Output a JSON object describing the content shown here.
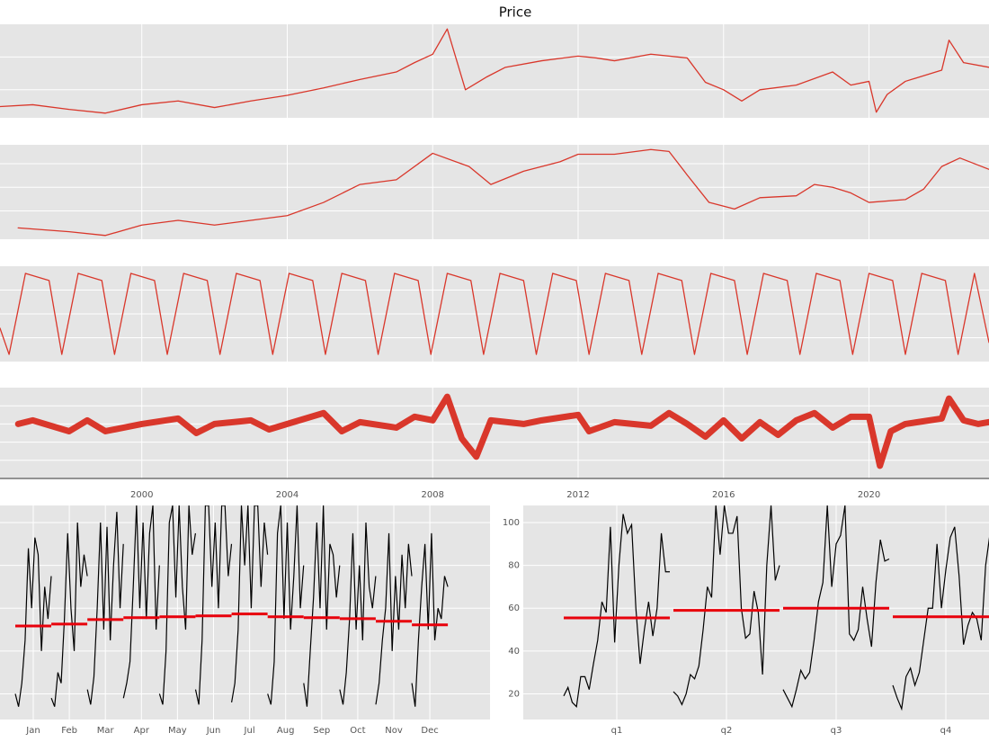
{
  "chart_data": [
    {
      "type": "line",
      "title": "Price",
      "color": "#d9372b",
      "linewidth": 1.3,
      "grid": true,
      "xlim": [
        1996.1,
        2023.3
      ],
      "xticks": [
        2000,
        2004,
        2008,
        2012,
        2016,
        2020
      ],
      "ylim": [
        0,
        100
      ],
      "yticks": [
        30,
        65
      ],
      "x": [
        1996.1,
        1997,
        1998,
        1999,
        2000,
        2001,
        2002,
        2003,
        2004,
        2005,
        2006,
        2007,
        2007.5,
        2008,
        2008.4,
        2008.9,
        2009.5,
        2010,
        2011,
        2012,
        2012.5,
        2013,
        2014,
        2015,
        2015.5,
        2016,
        2016.5,
        2017,
        2018,
        2019,
        2019.5,
        2020,
        2020.2,
        2020.5,
        2021,
        2022,
        2022.2,
        2022.6,
        2023.3
      ],
      "values": [
        12,
        14,
        9,
        5,
        14,
        18,
        11,
        18,
        24,
        32,
        41,
        49,
        59,
        68,
        95,
        30,
        44,
        54,
        61,
        66,
        64,
        61,
        68,
        64,
        38,
        30,
        18,
        30,
        35,
        49,
        35,
        39,
        6,
        25,
        39,
        51,
        83,
        59,
        54
      ]
    },
    {
      "type": "line",
      "color": "#d9372b",
      "linewidth": 1.3,
      "grid": true,
      "xlim": [
        1996.1,
        2023.3
      ],
      "xticks": [
        2000,
        2004,
        2008,
        2012,
        2016,
        2020
      ],
      "ylim": [
        0,
        100
      ],
      "yticks": [
        30,
        55,
        80
      ],
      "x": [
        1996.6,
        1998,
        1999,
        2000,
        2001,
        2002,
        2003,
        2004,
        2005,
        2006,
        2007,
        2008,
        2009,
        2009.6,
        2010.5,
        2011.5,
        2012,
        2013,
        2014,
        2014.5,
        2015,
        2015.6,
        2016.3,
        2017,
        2018,
        2018.5,
        2019,
        2019.5,
        2020,
        2021,
        2021.5,
        2022,
        2022.5,
        2023.3
      ],
      "values": [
        12,
        8,
        4,
        15,
        20,
        15,
        20,
        25,
        39,
        58,
        63,
        91,
        77,
        58,
        72,
        82,
        90,
        90,
        95,
        93,
        68,
        39,
        32,
        44,
        46,
        58,
        55,
        49,
        39,
        42,
        53,
        77,
        86,
        74
      ]
    },
    {
      "type": "line",
      "color": "#d9372b",
      "linewidth": 1.3,
      "grid": true,
      "xlim": [
        1996.1,
        2023.3
      ],
      "xticks": [
        2000,
        2004,
        2008,
        2012,
        2016,
        2020
      ],
      "ylim": [
        -1,
        1
      ],
      "yticks": [
        -0.5,
        0,
        0.5
      ],
      "x": [
        1996.1,
        1996.35,
        1996.8,
        1997.45,
        1997.8,
        1998.25,
        1998.9,
        1999.25,
        1999.7,
        2000.35,
        2000.7,
        2001.15,
        2001.8,
        2002.15,
        2002.6,
        2003.25,
        2003.6,
        2004.05,
        2004.7,
        2005.05,
        2005.5,
        2006.15,
        2006.5,
        2006.95,
        2007.6,
        2007.95,
        2008.4,
        2009.05,
        2009.4,
        2009.85,
        2010.5,
        2010.85,
        2011.3,
        2011.95,
        2012.3,
        2012.75,
        2013.4,
        2013.75,
        2014.2,
        2014.85,
        2015.2,
        2015.65,
        2016.3,
        2016.65,
        2017.1,
        2017.75,
        2018.1,
        2018.55,
        2019.2,
        2019.55,
        2020.0,
        2020.65,
        2021.0,
        2021.45,
        2022.1,
        2022.45,
        2022.9,
        2023.3
      ],
      "values": [
        -0.3,
        -0.85,
        0.85,
        0.7,
        -0.85,
        0.85,
        0.7,
        -0.85,
        0.85,
        0.7,
        -0.85,
        0.85,
        0.7,
        -0.85,
        0.85,
        0.7,
        -0.85,
        0.85,
        0.7,
        -0.85,
        0.85,
        0.7,
        -0.85,
        0.85,
        0.7,
        -0.85,
        0.85,
        0.7,
        -0.85,
        0.85,
        0.7,
        -0.85,
        0.85,
        0.7,
        -0.85,
        0.85,
        0.7,
        -0.85,
        0.85,
        0.7,
        -0.85,
        0.85,
        0.7,
        -0.85,
        0.85,
        0.7,
        -0.85,
        0.85,
        0.7,
        -0.85,
        0.85,
        0.7,
        -0.85,
        0.85,
        0.7,
        -0.85,
        0.85,
        -0.6
      ]
    },
    {
      "type": "line",
      "color": "#d9372b",
      "linewidth": 7,
      "grid": true,
      "xlim": [
        1996.1,
        2023.3
      ],
      "xticks": [
        2000,
        2004,
        2008,
        2012,
        2016,
        2020
      ],
      "ylim": [
        -1.5,
        1
      ],
      "yticks": [
        -1,
        -0.5,
        0,
        0.5
      ],
      "x": [
        1996.6,
        1997,
        1998,
        1998.5,
        1999,
        2000,
        2001,
        2001.5,
        2002,
        2003,
        2003.5,
        2004,
        2005,
        2005.5,
        2006,
        2007,
        2007.5,
        2008,
        2008.4,
        2008.8,
        2009.2,
        2009.6,
        2010.5,
        2011,
        2012,
        2012.3,
        2013,
        2014,
        2014.5,
        2015,
        2015.5,
        2016,
        2016.5,
        2017,
        2017.5,
        2018,
        2018.5,
        2019,
        2019.5,
        2020,
        2020.3,
        2020.6,
        2021,
        2022,
        2022.2,
        2022.6,
        2023,
        2023.3
      ],
      "values": [
        0,
        0.1,
        -0.2,
        0.1,
        -0.2,
        0,
        0.15,
        -0.25,
        0,
        0.1,
        -0.15,
        0,
        0.3,
        -0.2,
        0.05,
        -0.1,
        0.2,
        0.1,
        0.75,
        -0.4,
        -0.9,
        0.1,
        0,
        0.1,
        0.25,
        -0.2,
        0.05,
        -0.05,
        0.3,
        0,
        -0.35,
        0.1,
        -0.4,
        0.05,
        -0.3,
        0.1,
        0.3,
        -0.1,
        0.2,
        0.2,
        -1.15,
        -0.2,
        0,
        0.15,
        0.7,
        0.1,
        0,
        0.05
      ]
    },
    {
      "type": "subseries",
      "color": "#000000",
      "mean_color": "#e8000b",
      "grid": true,
      "ylim": [
        8,
        108
      ],
      "yticks": [
        20,
        40,
        60,
        80,
        100
      ],
      "categories": [
        "Jan",
        "Feb",
        "Mar",
        "Apr",
        "May",
        "Jun",
        "Jul",
        "Aug",
        "Sep",
        "Oct",
        "Nov",
        "Dec"
      ],
      "values": [
        [
          20,
          14,
          25,
          45,
          88,
          60,
          93,
          85,
          40,
          70,
          55,
          75
        ],
        [
          18,
          14,
          30,
          25,
          55,
          95,
          60,
          40,
          100,
          70,
          85,
          75
        ],
        [
          22,
          15,
          28,
          60,
          100,
          50,
          98,
          45,
          80,
          105,
          60,
          90
        ],
        [
          18,
          25,
          35,
          70,
          108,
          60,
          100,
          55,
          95,
          108,
          50,
          80
        ],
        [
          20,
          15,
          40,
          100,
          108,
          65,
          108,
          70,
          50,
          108,
          85,
          95
        ],
        [
          22,
          15,
          45,
          108,
          108,
          70,
          100,
          60,
          108,
          108,
          75,
          90
        ],
        [
          16,
          25,
          50,
          108,
          80,
          108,
          60,
          108,
          108,
          70,
          100,
          85
        ],
        [
          20,
          15,
          35,
          95,
          108,
          55,
          100,
          50,
          75,
          108,
          60,
          80
        ],
        [
          25,
          14,
          40,
          65,
          100,
          60,
          108,
          50,
          90,
          85,
          65,
          80
        ],
        [
          22,
          15,
          30,
          55,
          95,
          50,
          80,
          45,
          100,
          70,
          60,
          75
        ],
        [
          15,
          25,
          45,
          60,
          95,
          40,
          75,
          50,
          85,
          60,
          90,
          75
        ],
        [
          25,
          14,
          45,
          70,
          90,
          50,
          95,
          45,
          60,
          55,
          75,
          70
        ]
      ],
      "means": [
        51.7,
        52.6,
        54.7,
        55.6,
        56,
        56.4,
        57.3,
        56,
        55.6,
        55.1,
        53.9,
        52.2
      ]
    },
    {
      "type": "subseries",
      "color": "#000000",
      "mean_color": "#e8000b",
      "grid": true,
      "ylim": [
        8,
        108
      ],
      "yticks": [
        20,
        40,
        60,
        80,
        100
      ],
      "show_yticks": true,
      "categories": [
        "q1",
        "q2",
        "q3",
        "q4"
      ],
      "values": [
        [
          19,
          23,
          16,
          14,
          28,
          28,
          22,
          34,
          45,
          63,
          58,
          98,
          44,
          80,
          104,
          95,
          99,
          60,
          34,
          50,
          63,
          47,
          60,
          95,
          77,
          77
        ],
        [
          21,
          19,
          15,
          20,
          29,
          27,
          33,
          50,
          70,
          65,
          108,
          85,
          108,
          95,
          95,
          103,
          60,
          46,
          48,
          68,
          58,
          29,
          80,
          108,
          73,
          80
        ],
        [
          22,
          18,
          14,
          22,
          31,
          27,
          30,
          45,
          63,
          72,
          108,
          70,
          90,
          94,
          108,
          48,
          45,
          50,
          70,
          55,
          42,
          72,
          92,
          82,
          83
        ],
        [
          24,
          18,
          13,
          28,
          32,
          24,
          30,
          45,
          60,
          60,
          90,
          60,
          78,
          93,
          98,
          75,
          43,
          52,
          58,
          55,
          45,
          80,
          95,
          80,
          86
        ]
      ],
      "means": [
        55.5,
        59,
        60,
        56
      ]
    }
  ]
}
